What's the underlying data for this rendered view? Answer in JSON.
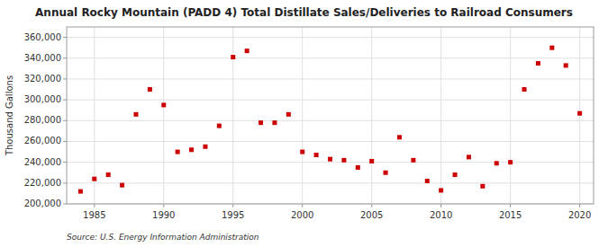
{
  "chart_data": {
    "type": "scatter",
    "title": "Annual Rocky Mountain (PADD 4) Total Distillate Sales/Deliveries to Railroad Consumers",
    "y_label": "Thousand Gallons",
    "source": "Source: U.S. Energy Information Administration",
    "x": [
      1984,
      1985,
      1986,
      1987,
      1988,
      1989,
      1990,
      1991,
      1992,
      1993,
      1994,
      1995,
      1996,
      1997,
      1998,
      1999,
      2000,
      2001,
      2002,
      2003,
      2004,
      2005,
      2006,
      2007,
      2008,
      2009,
      2010,
      2011,
      2012,
      2013,
      2014,
      2015,
      2016,
      2017,
      2018,
      2019,
      2020
    ],
    "values": [
      212000,
      224000,
      228000,
      218000,
      286000,
      310000,
      295000,
      250000,
      252000,
      255000,
      275000,
      341000,
      347000,
      278000,
      278000,
      286000,
      250000,
      247000,
      243000,
      242000,
      235000,
      241000,
      230000,
      264000,
      242000,
      222000,
      213000,
      228000,
      245000,
      217000,
      239000,
      240000,
      310000,
      335000,
      350000,
      333000,
      287000
    ],
    "color": "#cc0000",
    "marker": "square",
    "xlim": [
      1983,
      2021
    ],
    "xticks": [
      1985,
      1990,
      1995,
      2000,
      2005,
      2010,
      2015,
      2020
    ],
    "ylim": [
      200000,
      370000
    ],
    "yticks": [
      {
        "value": 200000,
        "label": "200,000"
      },
      {
        "value": 220000,
        "label": "220,000"
      },
      {
        "value": 240000,
        "label": "240,000"
      },
      {
        "value": 260000,
        "label": "260,000"
      },
      {
        "value": 280000,
        "label": "280,000"
      },
      {
        "value": 300000,
        "label": "300,000"
      },
      {
        "value": 320000,
        "label": "320,000"
      },
      {
        "value": 340000,
        "label": "340,000"
      },
      {
        "value": 360000,
        "label": "360,000"
      }
    ],
    "grid": true
  }
}
